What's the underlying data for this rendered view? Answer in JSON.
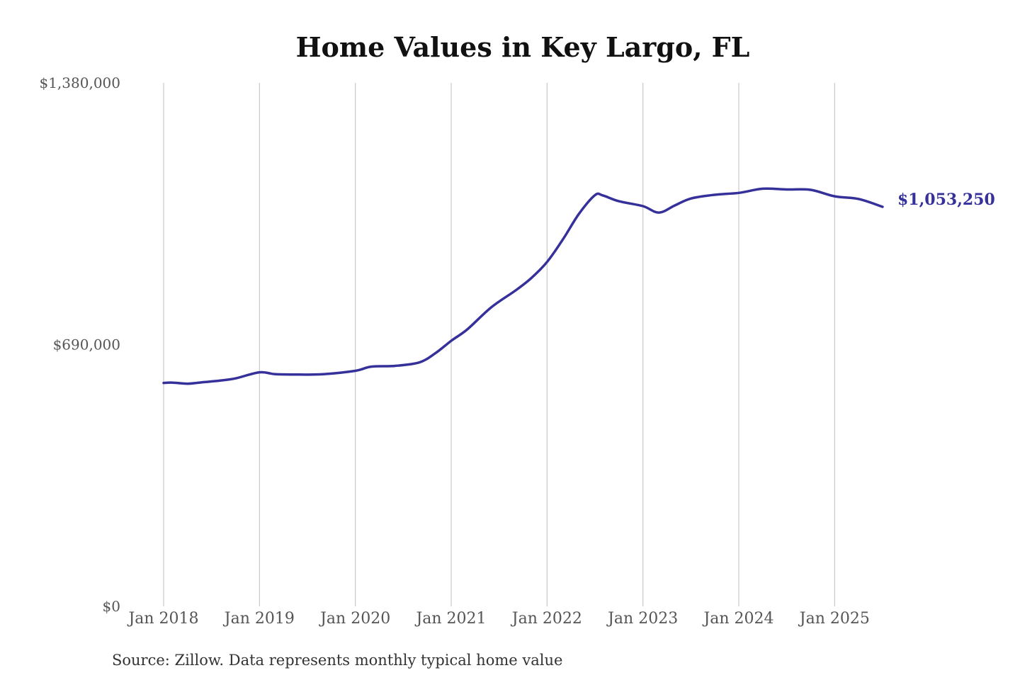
{
  "chart_data": {
    "type": "line",
    "title": "Home Values in Key Largo, FL",
    "xlabel": "",
    "ylabel": "",
    "source": "Source: Zillow. Data represents monthly typical home value",
    "ylim": [
      0,
      1380000
    ],
    "y_ticks": [
      {
        "value": 0,
        "label": "$0"
      },
      {
        "value": 690000,
        "label": "$690,000"
      },
      {
        "value": 1380000,
        "label": "$1,380,000"
      }
    ],
    "x_range": [
      "2018-01",
      "2025-07"
    ],
    "x_ticks": [
      {
        "date": "2018-01",
        "label": "Jan 2018"
      },
      {
        "date": "2019-01",
        "label": "Jan 2019"
      },
      {
        "date": "2020-01",
        "label": "Jan 2020"
      },
      {
        "date": "2021-01",
        "label": "Jan 2021"
      },
      {
        "date": "2022-01",
        "label": "Jan 2022"
      },
      {
        "date": "2023-01",
        "label": "Jan 2023"
      },
      {
        "date": "2024-01",
        "label": "Jan 2024"
      },
      {
        "date": "2025-01",
        "label": "Jan 2025"
      }
    ],
    "grid": {
      "vertical": true,
      "horizontal": false
    },
    "legend": "none",
    "end_label": "$1,053,250",
    "series": [
      {
        "color": "#35309a",
        "points": [
          {
            "x": "2018-01",
            "y": 589000
          },
          {
            "x": "2018-02",
            "y": 590000
          },
          {
            "x": "2018-04",
            "y": 587000
          },
          {
            "x": "2018-06",
            "y": 591000
          },
          {
            "x": "2018-08",
            "y": 595000
          },
          {
            "x": "2018-10",
            "y": 601000
          },
          {
            "x": "2019-01",
            "y": 617000
          },
          {
            "x": "2019-03",
            "y": 612000
          },
          {
            "x": "2019-06",
            "y": 611000
          },
          {
            "x": "2019-09",
            "y": 612000
          },
          {
            "x": "2020-01",
            "y": 621000
          },
          {
            "x": "2020-03",
            "y": 632000
          },
          {
            "x": "2020-06",
            "y": 634000
          },
          {
            "x": "2020-09",
            "y": 643000
          },
          {
            "x": "2020-11",
            "y": 667000
          },
          {
            "x": "2021-01",
            "y": 700000
          },
          {
            "x": "2021-03",
            "y": 730000
          },
          {
            "x": "2021-06",
            "y": 788000
          },
          {
            "x": "2021-09",
            "y": 832000
          },
          {
            "x": "2021-11",
            "y": 865000
          },
          {
            "x": "2022-01",
            "y": 908000
          },
          {
            "x": "2022-03",
            "y": 968000
          },
          {
            "x": "2022-05",
            "y": 1035000
          },
          {
            "x": "2022-07",
            "y": 1084000
          },
          {
            "x": "2022-08",
            "y": 1083000
          },
          {
            "x": "2022-10",
            "y": 1068000
          },
          {
            "x": "2023-01",
            "y": 1055000
          },
          {
            "x": "2023-03",
            "y": 1038000
          },
          {
            "x": "2023-05",
            "y": 1057000
          },
          {
            "x": "2023-07",
            "y": 1075000
          },
          {
            "x": "2023-10",
            "y": 1085000
          },
          {
            "x": "2024-01",
            "y": 1090000
          },
          {
            "x": "2024-04",
            "y": 1101000
          },
          {
            "x": "2024-07",
            "y": 1099000
          },
          {
            "x": "2024-10",
            "y": 1098000
          },
          {
            "x": "2025-01",
            "y": 1081000
          },
          {
            "x": "2025-04",
            "y": 1074000
          },
          {
            "x": "2025-07",
            "y": 1053250
          }
        ]
      }
    ]
  }
}
